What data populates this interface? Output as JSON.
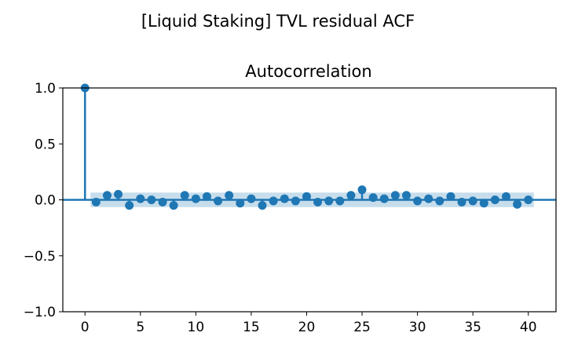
{
  "figure": {
    "suptitle": "[Liquid Staking] TVL residual ACF"
  },
  "chart_data": {
    "type": "scatter",
    "title": "Autocorrelation",
    "xlabel": "",
    "ylabel": "",
    "xlim": [
      -2,
      42.5
    ],
    "ylim": [
      -1.0,
      1.0
    ],
    "xticks": [
      0,
      5,
      10,
      15,
      20,
      25,
      30,
      35,
      40
    ],
    "xtick_labels": [
      "0",
      "5",
      "10",
      "15",
      "20",
      "25",
      "30",
      "35",
      "40"
    ],
    "yticks": [
      1.0,
      0.5,
      0.0,
      -0.5,
      -1.0
    ],
    "ytick_labels": [
      "1.0",
      "0.5",
      "0.0",
      "−0.5",
      "−1.0"
    ],
    "grid": false,
    "series": [
      {
        "lags": [
          0,
          1,
          2,
          3,
          4,
          5,
          6,
          7,
          8,
          9,
          10,
          11,
          12,
          13,
          14,
          15,
          16,
          17,
          18,
          19,
          20,
          21,
          22,
          23,
          24,
          25,
          26,
          27,
          28,
          29,
          30,
          31,
          32,
          33,
          34,
          35,
          36,
          37,
          38,
          39,
          40
        ],
        "values": [
          1.0,
          -0.02,
          0.04,
          0.05,
          -0.05,
          0.01,
          0.0,
          -0.02,
          -0.05,
          0.04,
          0.01,
          0.03,
          -0.01,
          0.04,
          -0.03,
          0.01,
          -0.05,
          -0.01,
          0.01,
          -0.01,
          0.03,
          -0.02,
          -0.01,
          -0.01,
          0.04,
          0.09,
          0.02,
          0.01,
          0.04,
          0.04,
          -0.01,
          0.01,
          -0.01,
          0.03,
          -0.02,
          -0.01,
          -0.03,
          0.0,
          0.03,
          -0.04,
          0.0
        ]
      }
    ],
    "confidence_band": {
      "x_start": 0.5,
      "x_end": 40.5,
      "lower": -0.065,
      "upper": 0.065
    },
    "colors": {
      "marker": "#1f77b4",
      "band": "#1f77b4",
      "zero_line": "#1f77b4"
    }
  }
}
